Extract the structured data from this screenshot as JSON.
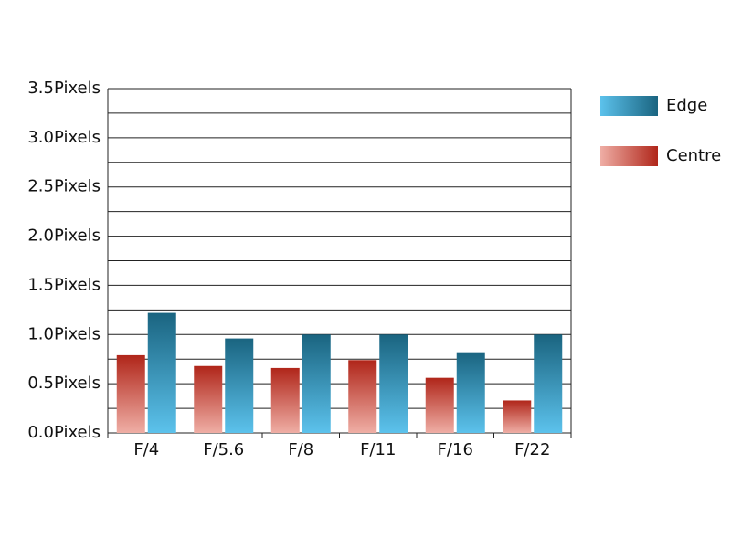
{
  "chart_data": {
    "type": "bar",
    "categories": [
      "F/4",
      "F/5.6",
      "F/8",
      "F/11",
      "F/16",
      "F/22"
    ],
    "series": [
      {
        "name": "Centre",
        "color": "#b0261a",
        "color_light": "#efaea5",
        "values": [
          0.79,
          0.68,
          0.66,
          0.74,
          0.56,
          0.33
        ]
      },
      {
        "name": "Edge",
        "color": "#1a6480",
        "color_light": "#5cc2ec",
        "values": [
          1.22,
          0.96,
          1.0,
          1.0,
          0.82,
          1.0
        ]
      }
    ],
    "ylim": [
      0,
      3.5
    ],
    "yticks": [
      {
        "value": 0,
        "label": "0.0Pixels"
      },
      {
        "value": 0.5,
        "label": "0.5Pixels"
      },
      {
        "value": 1,
        "label": "1.0Pixels"
      },
      {
        "value": 1.5,
        "label": "1.5Pixels"
      },
      {
        "value": 2,
        "label": "2.0Pixels"
      },
      {
        "value": 2.5,
        "label": "2.5Pixels"
      },
      {
        "value": 3,
        "label": "3.0Pixels"
      },
      {
        "value": 3.5,
        "label": "3.5Pixels"
      }
    ],
    "yminorticks": [
      0.25,
      0.75,
      1.25,
      1.75,
      2.25,
      2.75,
      3.25
    ],
    "grid": true,
    "legend": "right"
  }
}
